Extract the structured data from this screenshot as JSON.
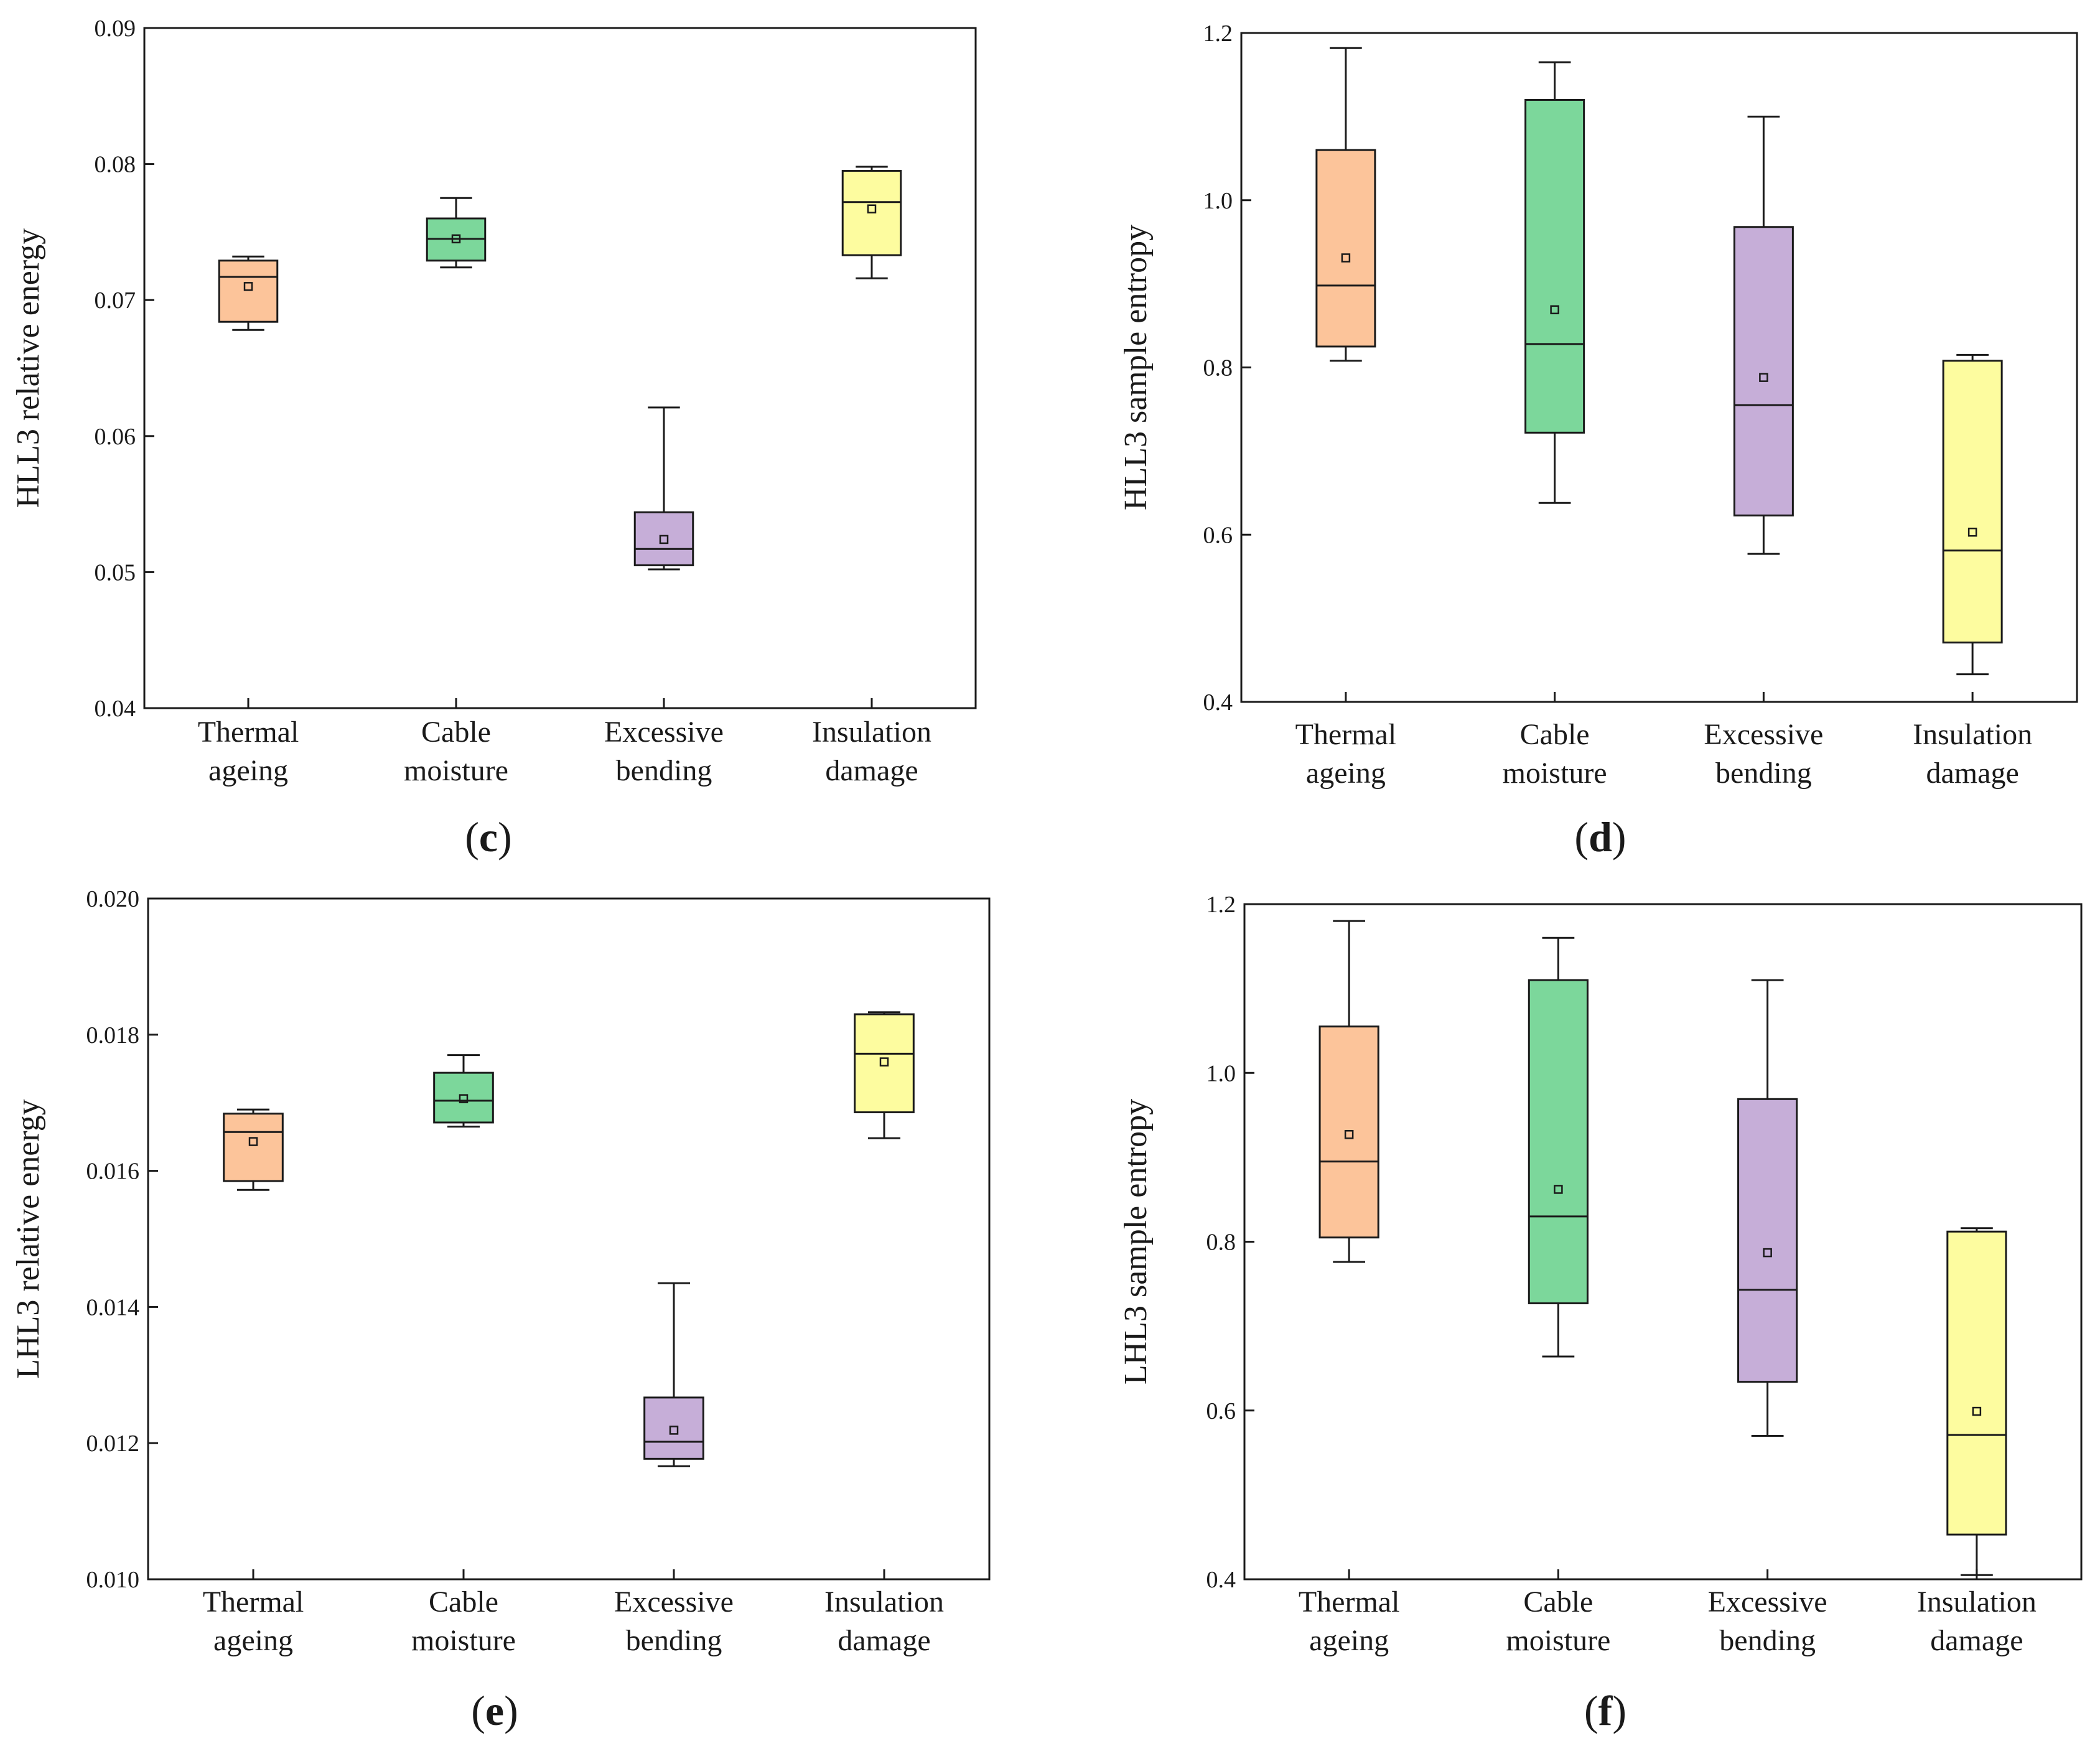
{
  "chart_data": [
    {
      "type": "box",
      "panel_label": "c",
      "ylabel": "HLL3 relative energy",
      "ylim": [
        0.04,
        0.09
      ],
      "yticks": [
        "0.04",
        "0.05",
        "0.06",
        "0.07",
        "0.08",
        "0.09"
      ],
      "categories": [
        [
          "Thermal",
          "ageing"
        ],
        [
          "Cable",
          "moisture"
        ],
        [
          "Excessive",
          "bending"
        ],
        [
          "Insulation",
          "damage"
        ]
      ],
      "boxes": [
        {
          "min": 0.0678,
          "q1": 0.0684,
          "median": 0.0717,
          "q3": 0.0729,
          "max": 0.0732,
          "mean": 0.071
        },
        {
          "min": 0.0724,
          "q1": 0.0729,
          "median": 0.0745,
          "q3": 0.076,
          "max": 0.0775,
          "mean": 0.0745
        },
        {
          "min": 0.0502,
          "q1": 0.0505,
          "median": 0.0517,
          "q3": 0.0544,
          "max": 0.0621,
          "mean": 0.0524
        },
        {
          "min": 0.0716,
          "q1": 0.0733,
          "median": 0.0772,
          "q3": 0.0795,
          "max": 0.0798,
          "mean": 0.0767
        }
      ]
    },
    {
      "type": "box",
      "panel_label": "d",
      "ylabel": "HLL3 sample entropy",
      "ylim": [
        0.4,
        1.2
      ],
      "yticks": [
        "0.4",
        "0.6",
        "0.8",
        "1.0",
        "1.2"
      ],
      "categories": [
        [
          "Thermal",
          "ageing"
        ],
        [
          "Cable",
          "moisture"
        ],
        [
          "Excessive",
          "bending"
        ],
        [
          "Insulation",
          "damage"
        ]
      ],
      "boxes": [
        {
          "min": 0.808,
          "q1": 0.825,
          "median": 0.898,
          "q3": 1.06,
          "max": 1.182,
          "mean": 0.931
        },
        {
          "min": 0.638,
          "q1": 0.722,
          "median": 0.828,
          "q3": 1.12,
          "max": 1.165,
          "mean": 0.869
        },
        {
          "min": 0.577,
          "q1": 0.623,
          "median": 0.755,
          "q3": 0.968,
          "max": 1.1,
          "mean": 0.788
        },
        {
          "min": 0.433,
          "q1": 0.471,
          "median": 0.581,
          "q3": 0.808,
          "max": 0.815,
          "mean": 0.603
        }
      ]
    },
    {
      "type": "box",
      "panel_label": "e",
      "ylabel": "LHL3 relative energy",
      "ylim": [
        0.01,
        0.02
      ],
      "yticks": [
        "0.010",
        "0.012",
        "0.014",
        "0.016",
        "0.018",
        "0.020"
      ],
      "categories": [
        [
          "Thermal",
          "ageing"
        ],
        [
          "Cable",
          "moisture"
        ],
        [
          "Excessive",
          "bending"
        ],
        [
          "Insulation",
          "damage"
        ]
      ],
      "boxes": [
        {
          "min": 0.01572,
          "q1": 0.01585,
          "median": 0.01657,
          "q3": 0.01684,
          "max": 0.0169,
          "mean": 0.01643
        },
        {
          "min": 0.01665,
          "q1": 0.01671,
          "median": 0.01703,
          "q3": 0.01744,
          "max": 0.0177,
          "mean": 0.01706
        },
        {
          "min": 0.01166,
          "q1": 0.01177,
          "median": 0.01202,
          "q3": 0.01267,
          "max": 0.01435,
          "mean": 0.01219
        },
        {
          "min": 0.01648,
          "q1": 0.01686,
          "median": 0.01772,
          "q3": 0.0183,
          "max": 0.01833,
          "mean": 0.0176
        }
      ]
    },
    {
      "type": "box",
      "panel_label": "f",
      "ylabel": "LHL3 sample entropy",
      "ylim": [
        0.4,
        1.2
      ],
      "yticks": [
        "0.4",
        "0.6",
        "0.8",
        "1.0",
        "1.2"
      ],
      "categories": [
        [
          "Thermal",
          "ageing"
        ],
        [
          "Cable",
          "moisture"
        ],
        [
          "Excessive",
          "bending"
        ],
        [
          "Insulation",
          "damage"
        ]
      ],
      "boxes": [
        {
          "min": 0.776,
          "q1": 0.805,
          "median": 0.895,
          "q3": 1.055,
          "max": 1.18,
          "mean": 0.927
        },
        {
          "min": 0.664,
          "q1": 0.727,
          "median": 0.83,
          "q3": 1.11,
          "max": 1.16,
          "mean": 0.862
        },
        {
          "min": 0.57,
          "q1": 0.634,
          "median": 0.743,
          "q3": 0.969,
          "max": 1.11,
          "mean": 0.787
        },
        {
          "min": 0.405,
          "q1": 0.453,
          "median": 0.571,
          "q3": 0.812,
          "max": 0.816,
          "mean": 0.599
        }
      ]
    }
  ],
  "colors": {
    "series_fill": [
      "#fcc49a",
      "#7cd79b",
      "#c6aed8",
      "#fdfc9f"
    ],
    "axis": "#1a1a1a"
  }
}
